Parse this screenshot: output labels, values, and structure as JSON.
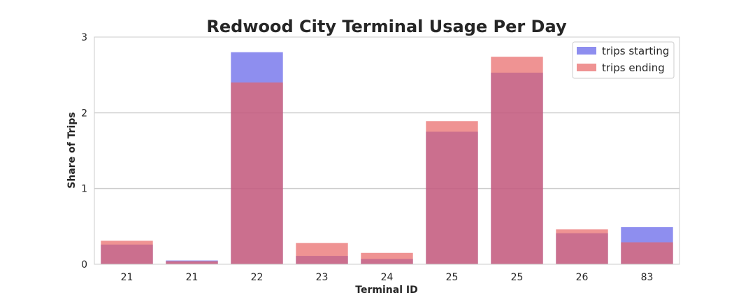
{
  "chart_data": {
    "type": "bar",
    "title": "Redwood City Terminal Usage Per Day",
    "xlabel": "Terminal ID",
    "ylabel": "Share of Trips",
    "ylim": [
      0,
      3
    ],
    "yticks": [
      "0",
      "1",
      "2",
      "3"
    ],
    "grid": "horizontal",
    "legend_position": "top-right",
    "categories": [
      "21",
      "21",
      "22",
      "23",
      "24",
      "25",
      "25",
      "26",
      "83"
    ],
    "series": [
      {
        "name": "trips starting",
        "color": "#5858e8",
        "values": [
          0.26,
          0.05,
          2.8,
          0.11,
          0.07,
          1.75,
          2.53,
          0.41,
          0.49
        ]
      },
      {
        "name": "trips ending",
        "color": "#e86060",
        "values": [
          0.31,
          0.04,
          2.4,
          0.28,
          0.15,
          1.89,
          2.74,
          0.46,
          0.29
        ]
      }
    ]
  }
}
